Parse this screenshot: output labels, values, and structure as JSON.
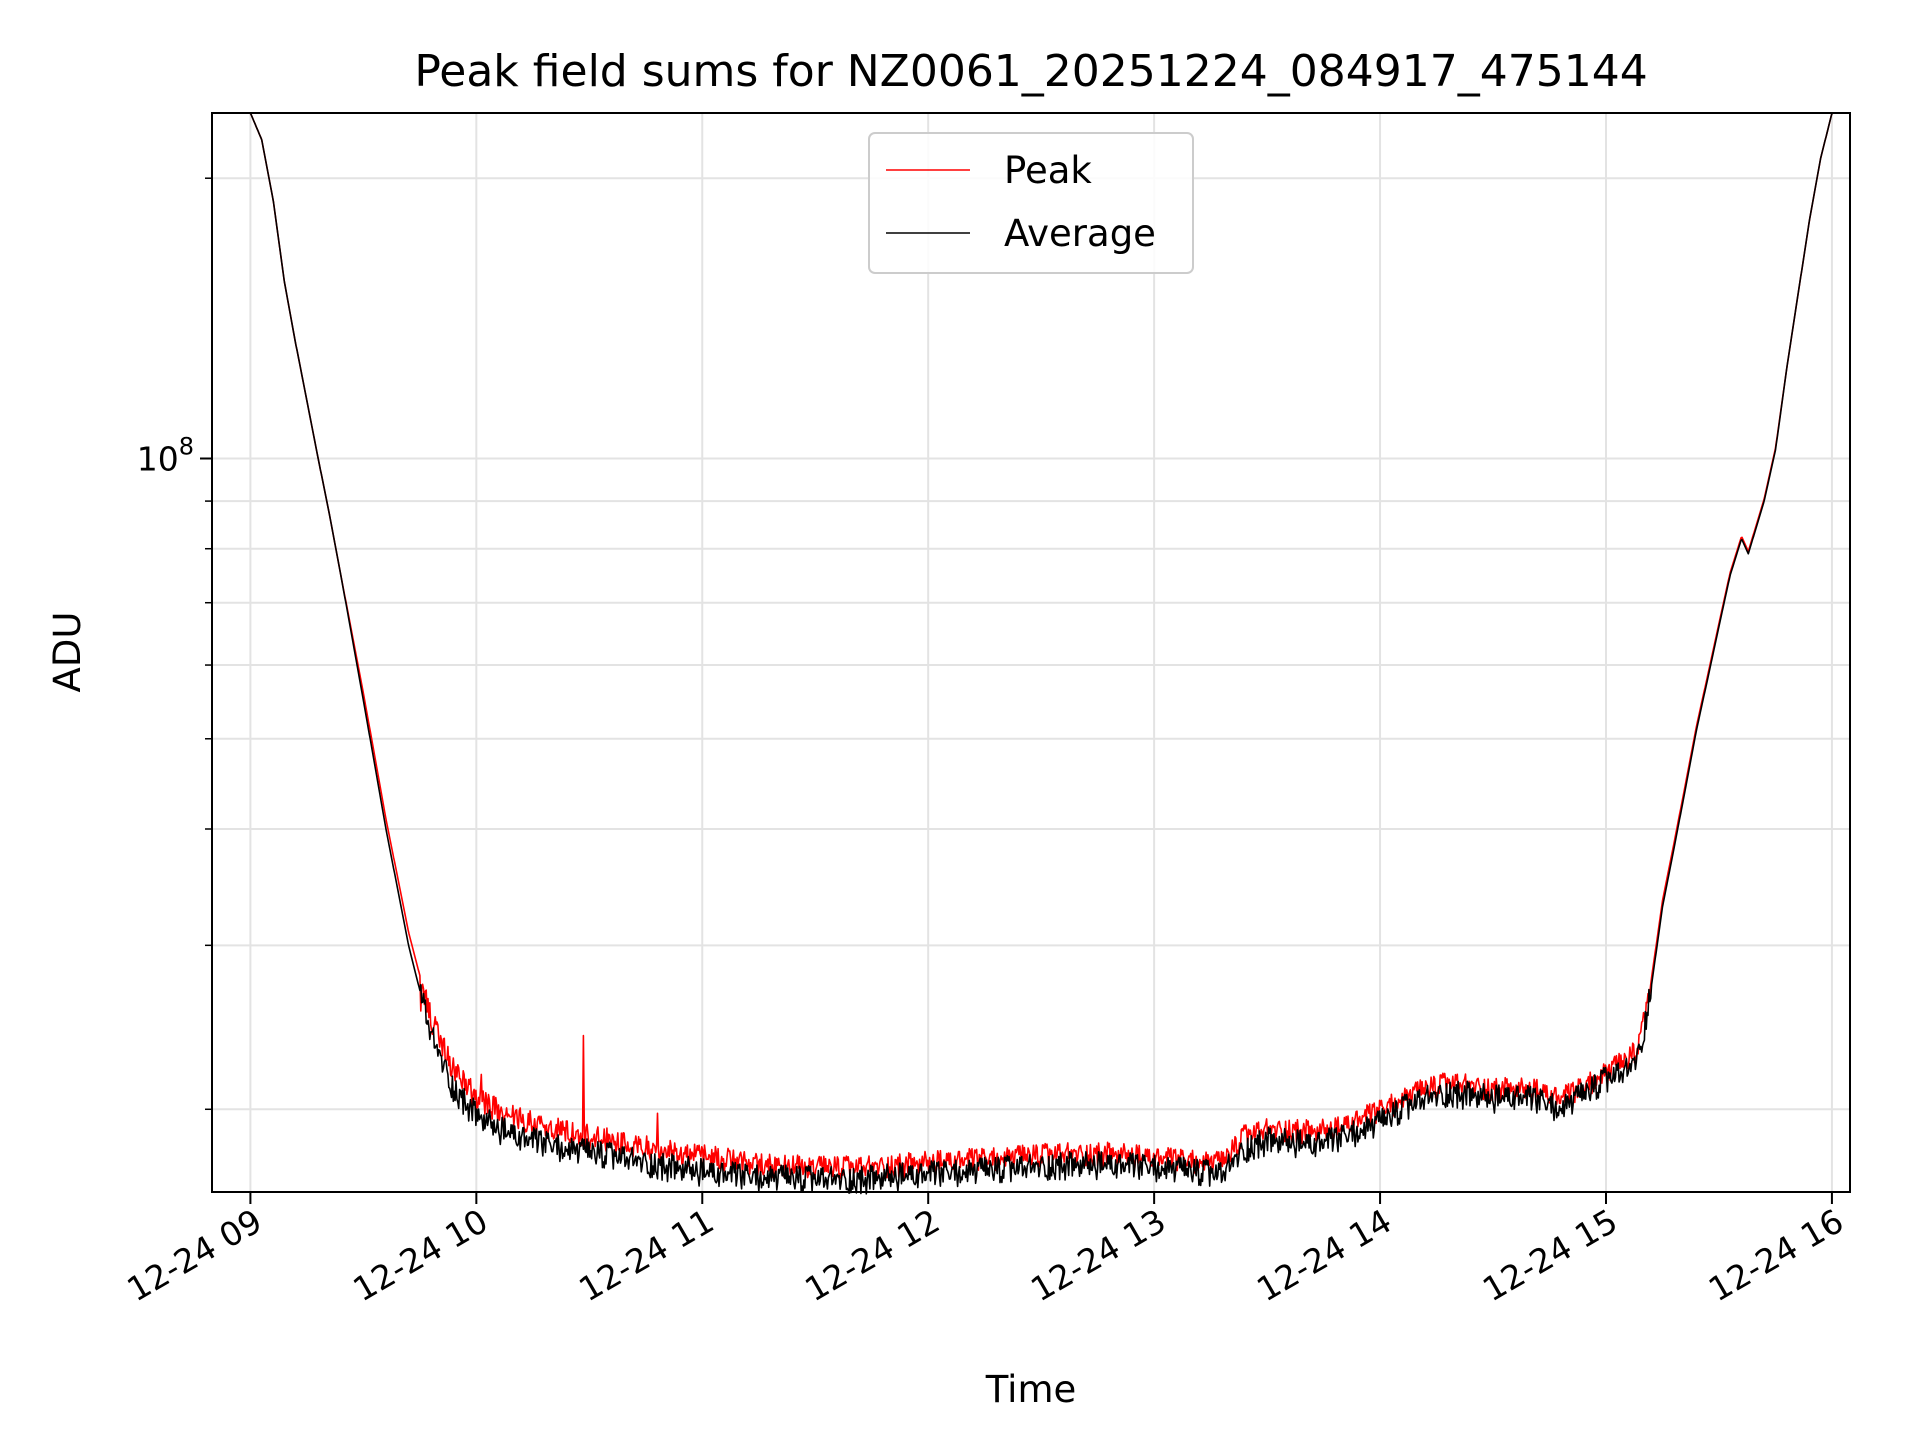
{
  "chart_data": {
    "type": "line",
    "title": "Peak field sums for NZ0061_20251224_084917_475144",
    "xlabel": "Time",
    "ylabel": "ADU",
    "x_units": "hours",
    "x_range": [
      8.83,
      16.08
    ],
    "x_ticks": [
      {
        "value": 9,
        "label": "12-24 09"
      },
      {
        "value": 10,
        "label": "12-24 10"
      },
      {
        "value": 11,
        "label": "12-24 11"
      },
      {
        "value": 12,
        "label": "12-24 12"
      },
      {
        "value": 13,
        "label": "12-24 13"
      },
      {
        "value": 14,
        "label": "12-24 14"
      },
      {
        "value": 15,
        "label": "12-24 15"
      },
      {
        "value": 16,
        "label": "12-24 16"
      }
    ],
    "y_scale": "log",
    "y_range": [
      16300000.0,
      235000000.0
    ],
    "y_ticks": [
      {
        "value": 100000000,
        "base": "10",
        "exponent": "8"
      }
    ],
    "y_minor_ticks": [
      20000000,
      30000000,
      40000000,
      50000000,
      60000000,
      70000000,
      80000000,
      90000000,
      200000000
    ],
    "grid": true,
    "legend": {
      "position": "top-center",
      "entries": [
        "Peak",
        "Average"
      ]
    },
    "series": [
      {
        "name": "Average",
        "color": "#000000",
        "noise": 0.035,
        "x": [
          8.83,
          9.0,
          9.05,
          9.1,
          9.15,
          9.2,
          9.3,
          9.35,
          9.4,
          9.5,
          9.6,
          9.7,
          9.8,
          9.9,
          10.0,
          10.1,
          10.2,
          10.4,
          10.6,
          10.8,
          11.0,
          11.2,
          11.5,
          11.7,
          12.0,
          12.3,
          12.6,
          12.8,
          13.0,
          13.3,
          13.4,
          13.5,
          13.6,
          13.7,
          13.8,
          14.0,
          14.1,
          14.2,
          14.3,
          14.4,
          14.5,
          14.6,
          14.7,
          14.8,
          14.9,
          15.0,
          15.1,
          15.15,
          15.2,
          15.25,
          15.3,
          15.35,
          15.4,
          15.45,
          15.5,
          15.55,
          15.6,
          15.63,
          15.65,
          15.7,
          15.75,
          15.8,
          15.85,
          15.9,
          15.95,
          16.0,
          16.08
        ],
        "values": [
          235000000,
          235000000,
          220000000,
          190000000,
          155000000,
          133000000,
          100000000,
          87000000,
          75000000,
          55000000,
          40000000,
          30000000,
          24000000,
          21000000,
          19700000,
          19000000,
          18600000,
          18100000,
          17800000,
          17400000,
          17100000,
          16900000,
          16800000,
          16800000,
          17000000,
          17200000,
          17400000,
          17400000,
          17300000,
          17000000,
          18100000,
          18500000,
          18400000,
          18300000,
          18500000,
          19300000,
          20000000,
          20500000,
          20800000,
          20700000,
          20500000,
          20600000,
          20400000,
          20000000,
          20700000,
          21500000,
          22000000,
          23000000,
          27000000,
          33000000,
          38000000,
          44000000,
          51000000,
          58000000,
          66000000,
          75000000,
          82000000,
          79000000,
          82000000,
          90000000,
          102000000,
          125000000,
          150000000,
          180000000,
          210000000,
          235000000,
          235000000
        ]
      },
      {
        "name": "Peak",
        "color": "#ff0000",
        "noise": 0.03,
        "x": [
          8.83,
          9.0,
          9.05,
          9.1,
          9.15,
          9.2,
          9.3,
          9.35,
          9.4,
          9.5,
          9.6,
          9.7,
          9.8,
          9.9,
          10.0,
          10.1,
          10.2,
          10.4,
          10.6,
          10.8,
          11.0,
          11.2,
          11.5,
          11.7,
          12.0,
          12.3,
          12.6,
          12.8,
          13.0,
          13.3,
          13.4,
          13.5,
          13.6,
          13.7,
          13.8,
          14.0,
          14.1,
          14.2,
          14.3,
          14.4,
          14.5,
          14.6,
          14.7,
          14.8,
          14.9,
          15.0,
          15.1,
          15.15,
          15.2,
          15.25,
          15.3,
          15.35,
          15.4,
          15.45,
          15.5,
          15.55,
          15.6,
          15.63,
          15.65,
          15.7,
          15.75,
          15.8,
          15.85,
          15.9,
          15.95,
          16.0,
          16.08
        ],
        "values": [
          235000000,
          235000000,
          220000000,
          190000000,
          155000000,
          133000000,
          100000000,
          87000000,
          75000000,
          56000000,
          41000000,
          31000000,
          25000000,
          22000000,
          20600000,
          19900000,
          19500000,
          18900000,
          18500000,
          18100000,
          17800000,
          17500000,
          17300000,
          17300000,
          17500000,
          17700000,
          17900000,
          17900000,
          17700000,
          17500000,
          18700000,
          19000000,
          19000000,
          18900000,
          19000000,
          19900000,
          20500000,
          21000000,
          21300000,
          21200000,
          21000000,
          21000000,
          20900000,
          20500000,
          21100000,
          21900000,
          22600000,
          23500000,
          27500000,
          33500000,
          38500000,
          44500000,
          51500000,
          58500000,
          66500000,
          75500000,
          82500000,
          79500000,
          82500000,
          90500000,
          102500000,
          125000000,
          150000000,
          180000000,
          210000000,
          235000000,
          235000000
        ],
        "spikes": [
          [
            10.47,
            24000000
          ],
          [
            10.8,
            19800000
          ],
          [
            9.75,
            25500000
          ],
          [
            10.02,
            21800000
          ]
        ]
      }
    ]
  }
}
